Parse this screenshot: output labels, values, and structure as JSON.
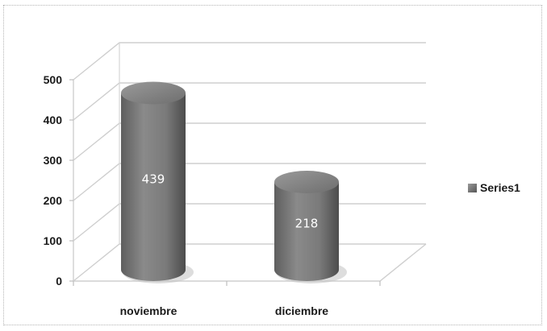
{
  "chart_data": {
    "type": "bar",
    "style": "3d-cylinder",
    "categories": [
      "noviembre",
      "diciembre"
    ],
    "series": [
      {
        "name": "Series1",
        "values": [
          439,
          218
        ],
        "color": "#7a7a7a"
      }
    ],
    "ylim": [
      0,
      500
    ],
    "yticks": [
      0,
      100,
      200,
      300,
      400,
      500
    ],
    "grid": true,
    "legend": "right",
    "data_labels": true,
    "title": "",
    "xlabel": "",
    "ylabel": ""
  }
}
